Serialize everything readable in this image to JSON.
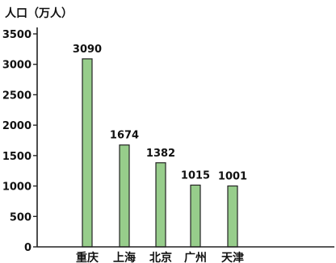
{
  "chart_data": {
    "type": "bar",
    "ylabel": "人口（万人）",
    "categories": [
      "重庆",
      "上海",
      "北京",
      "广州",
      "天津"
    ],
    "values": [
      3090,
      1674,
      1382,
      1015,
      1001
    ],
    "value_labels": [
      "3090",
      "1674",
      "1382",
      "1015",
      "1001"
    ],
    "yticks": [
      "0",
      "500",
      "1000",
      "1500",
      "2000",
      "2500",
      "3000",
      "3500"
    ],
    "ylim": [
      0,
      3500
    ],
    "grid": false,
    "bar_color": "#97cd8b"
  }
}
